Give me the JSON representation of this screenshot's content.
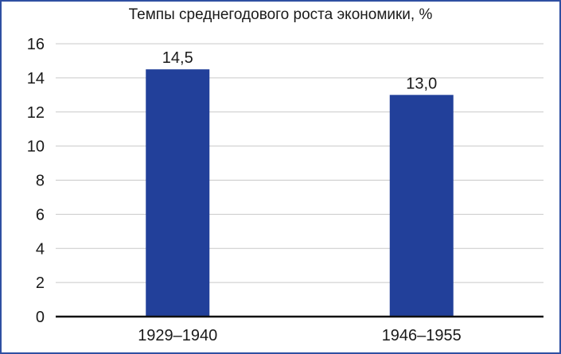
{
  "chart_data": {
    "type": "bar",
    "title": "Темпы среднегодового роста экономики, %",
    "categories": [
      "1929–1940",
      "1946–1955"
    ],
    "values": [
      14.5,
      13.0
    ],
    "value_labels": [
      "14,5",
      "13,0"
    ],
    "ylim": [
      0,
      16
    ],
    "yticks": [
      0,
      2,
      4,
      6,
      8,
      10,
      12,
      14,
      16
    ],
    "grid": true,
    "colors": {
      "bar": "#22409a",
      "grid": "#c9c9c9",
      "axis": "#111111",
      "frame": "#2f4fa2"
    }
  }
}
